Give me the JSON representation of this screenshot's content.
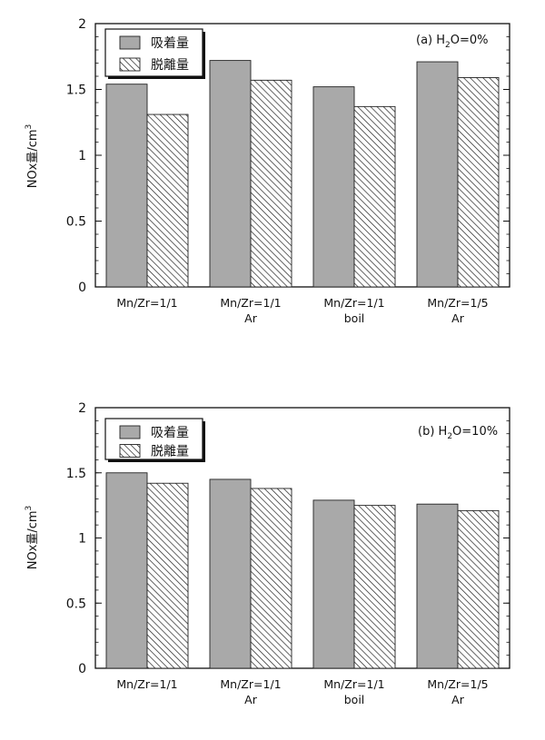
{
  "chart_data": [
    {
      "type": "bar",
      "panel_label": "(a) H",
      "panel_sub": "2",
      "panel_tail": "O=0%",
      "ylabel_main": "NOx量/cm",
      "ylabel_sup": "3",
      "ylim": [
        0,
        2
      ],
      "yticks": [
        "0",
        "0.5",
        "1",
        "1.5",
        "2"
      ],
      "ytick_values": [
        0,
        0.5,
        1,
        1.5,
        2
      ],
      "categories": [
        [
          "Mn/Zr=1/1"
        ],
        [
          "Mn/Zr=1/1",
          "Ar"
        ],
        [
          "Mn/Zr=1/1",
          "boil"
        ],
        [
          "Mn/Zr=1/5",
          "Ar"
        ]
      ],
      "series": [
        {
          "name": "吸着量",
          "values": [
            1.54,
            1.72,
            1.52,
            1.71
          ],
          "fill": "solid",
          "color": "#a9a9a9"
        },
        {
          "name": "脱離量",
          "values": [
            1.31,
            1.57,
            1.37,
            1.59
          ],
          "fill": "hatch",
          "color": "#ffffff"
        }
      ],
      "legend_position": "top-left",
      "grid": false
    },
    {
      "type": "bar",
      "panel_label": "(b) H",
      "panel_sub": "2",
      "panel_tail": "O=10%",
      "ylabel_main": "NOx量/cm",
      "ylabel_sup": "3",
      "ylim": [
        0,
        2
      ],
      "yticks": [
        "0",
        "0.5",
        "1",
        "1.5",
        "2"
      ],
      "ytick_values": [
        0,
        0.5,
        1,
        1.5,
        2
      ],
      "categories": [
        [
          "Mn/Zr=1/1"
        ],
        [
          "Mn/Zr=1/1",
          "Ar"
        ],
        [
          "Mn/Zr=1/1",
          "boil"
        ],
        [
          "Mn/Zr=1/5",
          "Ar"
        ]
      ],
      "series": [
        {
          "name": "吸着量",
          "values": [
            1.5,
            1.45,
            1.29,
            1.26
          ],
          "fill": "solid",
          "color": "#a9a9a9"
        },
        {
          "name": "脱離量",
          "values": [
            1.42,
            1.38,
            1.25,
            1.21
          ],
          "fill": "hatch",
          "color": "#ffffff"
        }
      ],
      "legend_position": "top-left",
      "grid": false
    }
  ]
}
